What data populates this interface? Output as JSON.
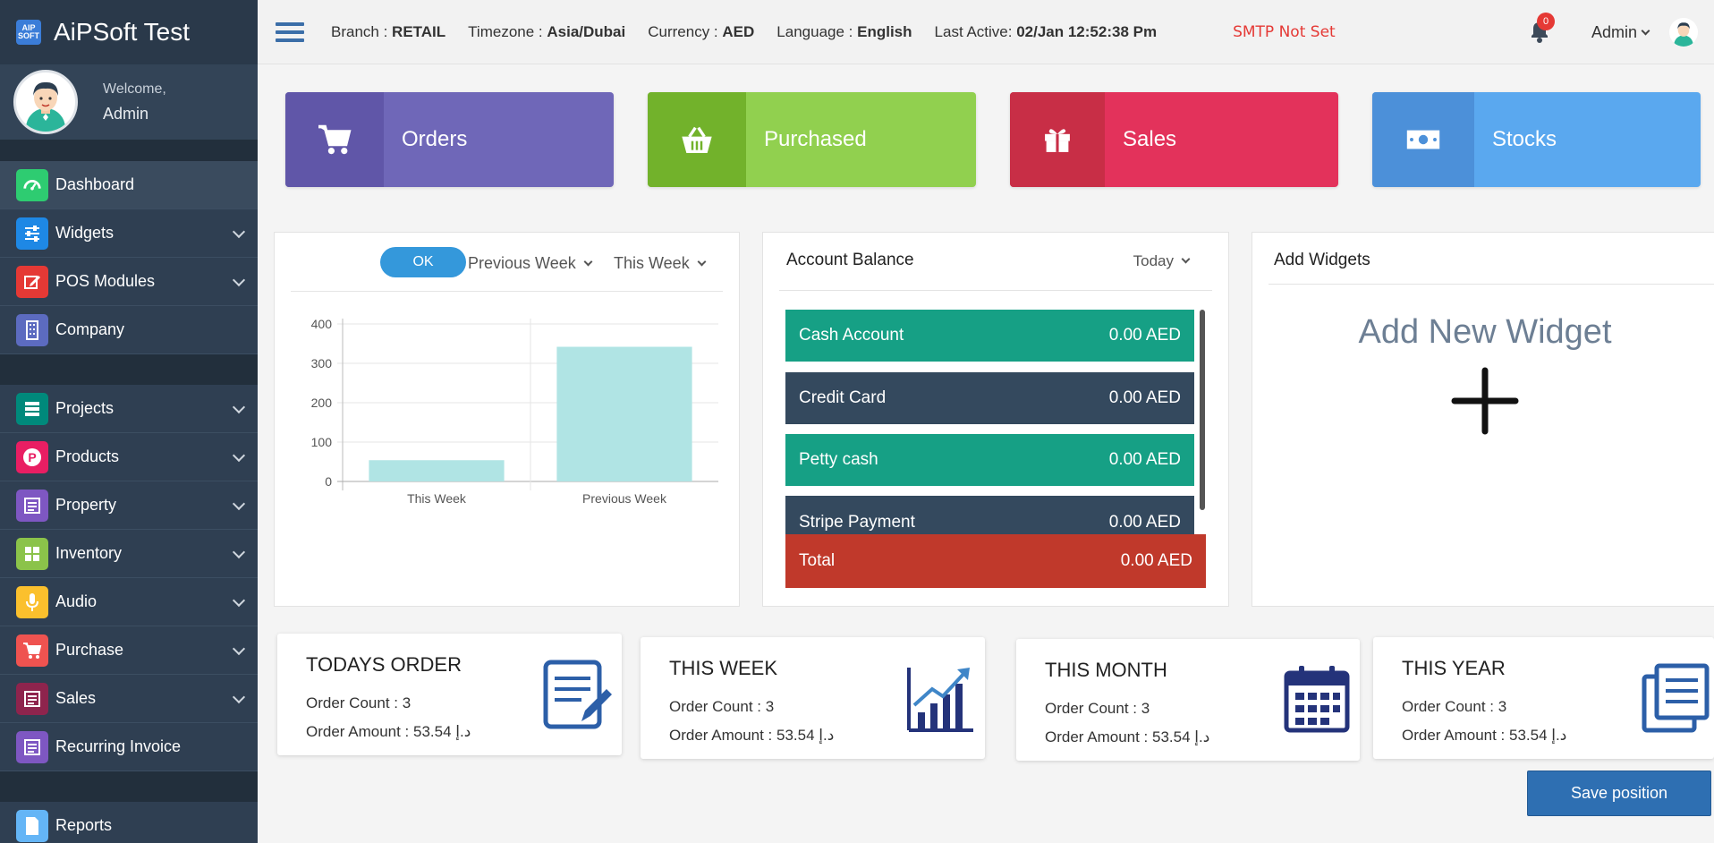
{
  "app": {
    "title": "AiPSoft Test",
    "logo_text": "AIP SOFT"
  },
  "user": {
    "welcome": "Welcome,",
    "name": "Admin"
  },
  "sidebar": {
    "items": [
      {
        "label": "Dashboard",
        "color": "#2ecc71"
      },
      {
        "label": "Widgets",
        "color": "#1e88e5"
      },
      {
        "label": "POS Modules",
        "color": "#e53935"
      },
      {
        "label": "Company",
        "color": "#5c6bc0"
      },
      {
        "label": "Projects",
        "color": "#00897b"
      },
      {
        "label": "Products",
        "color": "#e91e63"
      },
      {
        "label": "Property",
        "color": "#7e57c2"
      },
      {
        "label": "Inventory",
        "color": "#8bc34a"
      },
      {
        "label": "Audio",
        "color": "#fbc02d"
      },
      {
        "label": "Purchase",
        "color": "#ef5350"
      },
      {
        "label": "Sales",
        "color": "#8e244d"
      },
      {
        "label": "Recurring Invoice",
        "color": "#7e57c2"
      },
      {
        "label": "Reports",
        "color": "#64b5f6"
      }
    ]
  },
  "header": {
    "branch_label": "Branch :",
    "branch": "RETAIL",
    "timezone_label": "Timezone :",
    "timezone": "Asia/Dubai",
    "currency_label": "Currency :",
    "currency": "AED",
    "language_label": "Language :",
    "language": "English",
    "last_active_label": "Last Active:",
    "last_active": "02/Jan 12:52:38 Pm",
    "smtp": "SMTP Not Set",
    "notification_count": "0",
    "user_menu": "Admin"
  },
  "tiles": [
    {
      "label": "Orders",
      "color": "#6f67b8",
      "icon_bg": "#6056a8",
      "icon": "cart-icon"
    },
    {
      "label": "Purchased",
      "color": "#91d04f",
      "icon_bg": "#72b22b",
      "icon": "basket-icon"
    },
    {
      "label": "Sales",
      "color": "#e3325b",
      "icon_bg": "#c82e46",
      "icon": "gift-icon"
    },
    {
      "label": "Stocks",
      "color": "#5aa8ef",
      "icon_bg": "#4c90d9",
      "icon": "money-icon"
    }
  ],
  "chart_controls": {
    "ok": "OK",
    "range_a": "Previous Week",
    "range_b": "This Week"
  },
  "chart_data": {
    "type": "bar",
    "categories": [
      "This Week",
      "Previous Week"
    ],
    "values": [
      54,
      342
    ],
    "ylim": [
      0,
      400
    ],
    "yticks": [
      "0",
      "100",
      "200",
      "300",
      "400"
    ],
    "color": "#b0e4e4"
  },
  "account": {
    "title": "Account Balance",
    "period": "Today",
    "rows": [
      {
        "name": "Cash Account",
        "amount": "0.00 AED",
        "color": "#16a085"
      },
      {
        "name": "Credit Card",
        "amount": "0.00 AED",
        "color": "#34495e"
      },
      {
        "name": "Petty cash",
        "amount": "0.00 AED",
        "color": "#16a085"
      },
      {
        "name": "Stripe Payment",
        "amount": "0.00 AED",
        "color": "#34495e"
      }
    ],
    "total_label": "Total",
    "total_amount": "0.00 AED"
  },
  "add_widgets": {
    "title": "Add Widgets",
    "cta": "Add New Widget"
  },
  "summary": [
    {
      "title": "TODAYS ORDER",
      "count": "Order Count : 3",
      "amount": "Order Amount : 53.54 د.إ"
    },
    {
      "title": "THIS WEEK",
      "count": "Order Count : 3",
      "amount": "Order Amount : 53.54 د.إ"
    },
    {
      "title": "THIS MONTH",
      "count": "Order Count : 3",
      "amount": "Order Amount : 53.54 د.إ"
    },
    {
      "title": "THIS YEAR",
      "count": "Order Count : 3",
      "amount": "Order Amount : 53.54 د.إ"
    }
  ],
  "save_button": "Save position"
}
